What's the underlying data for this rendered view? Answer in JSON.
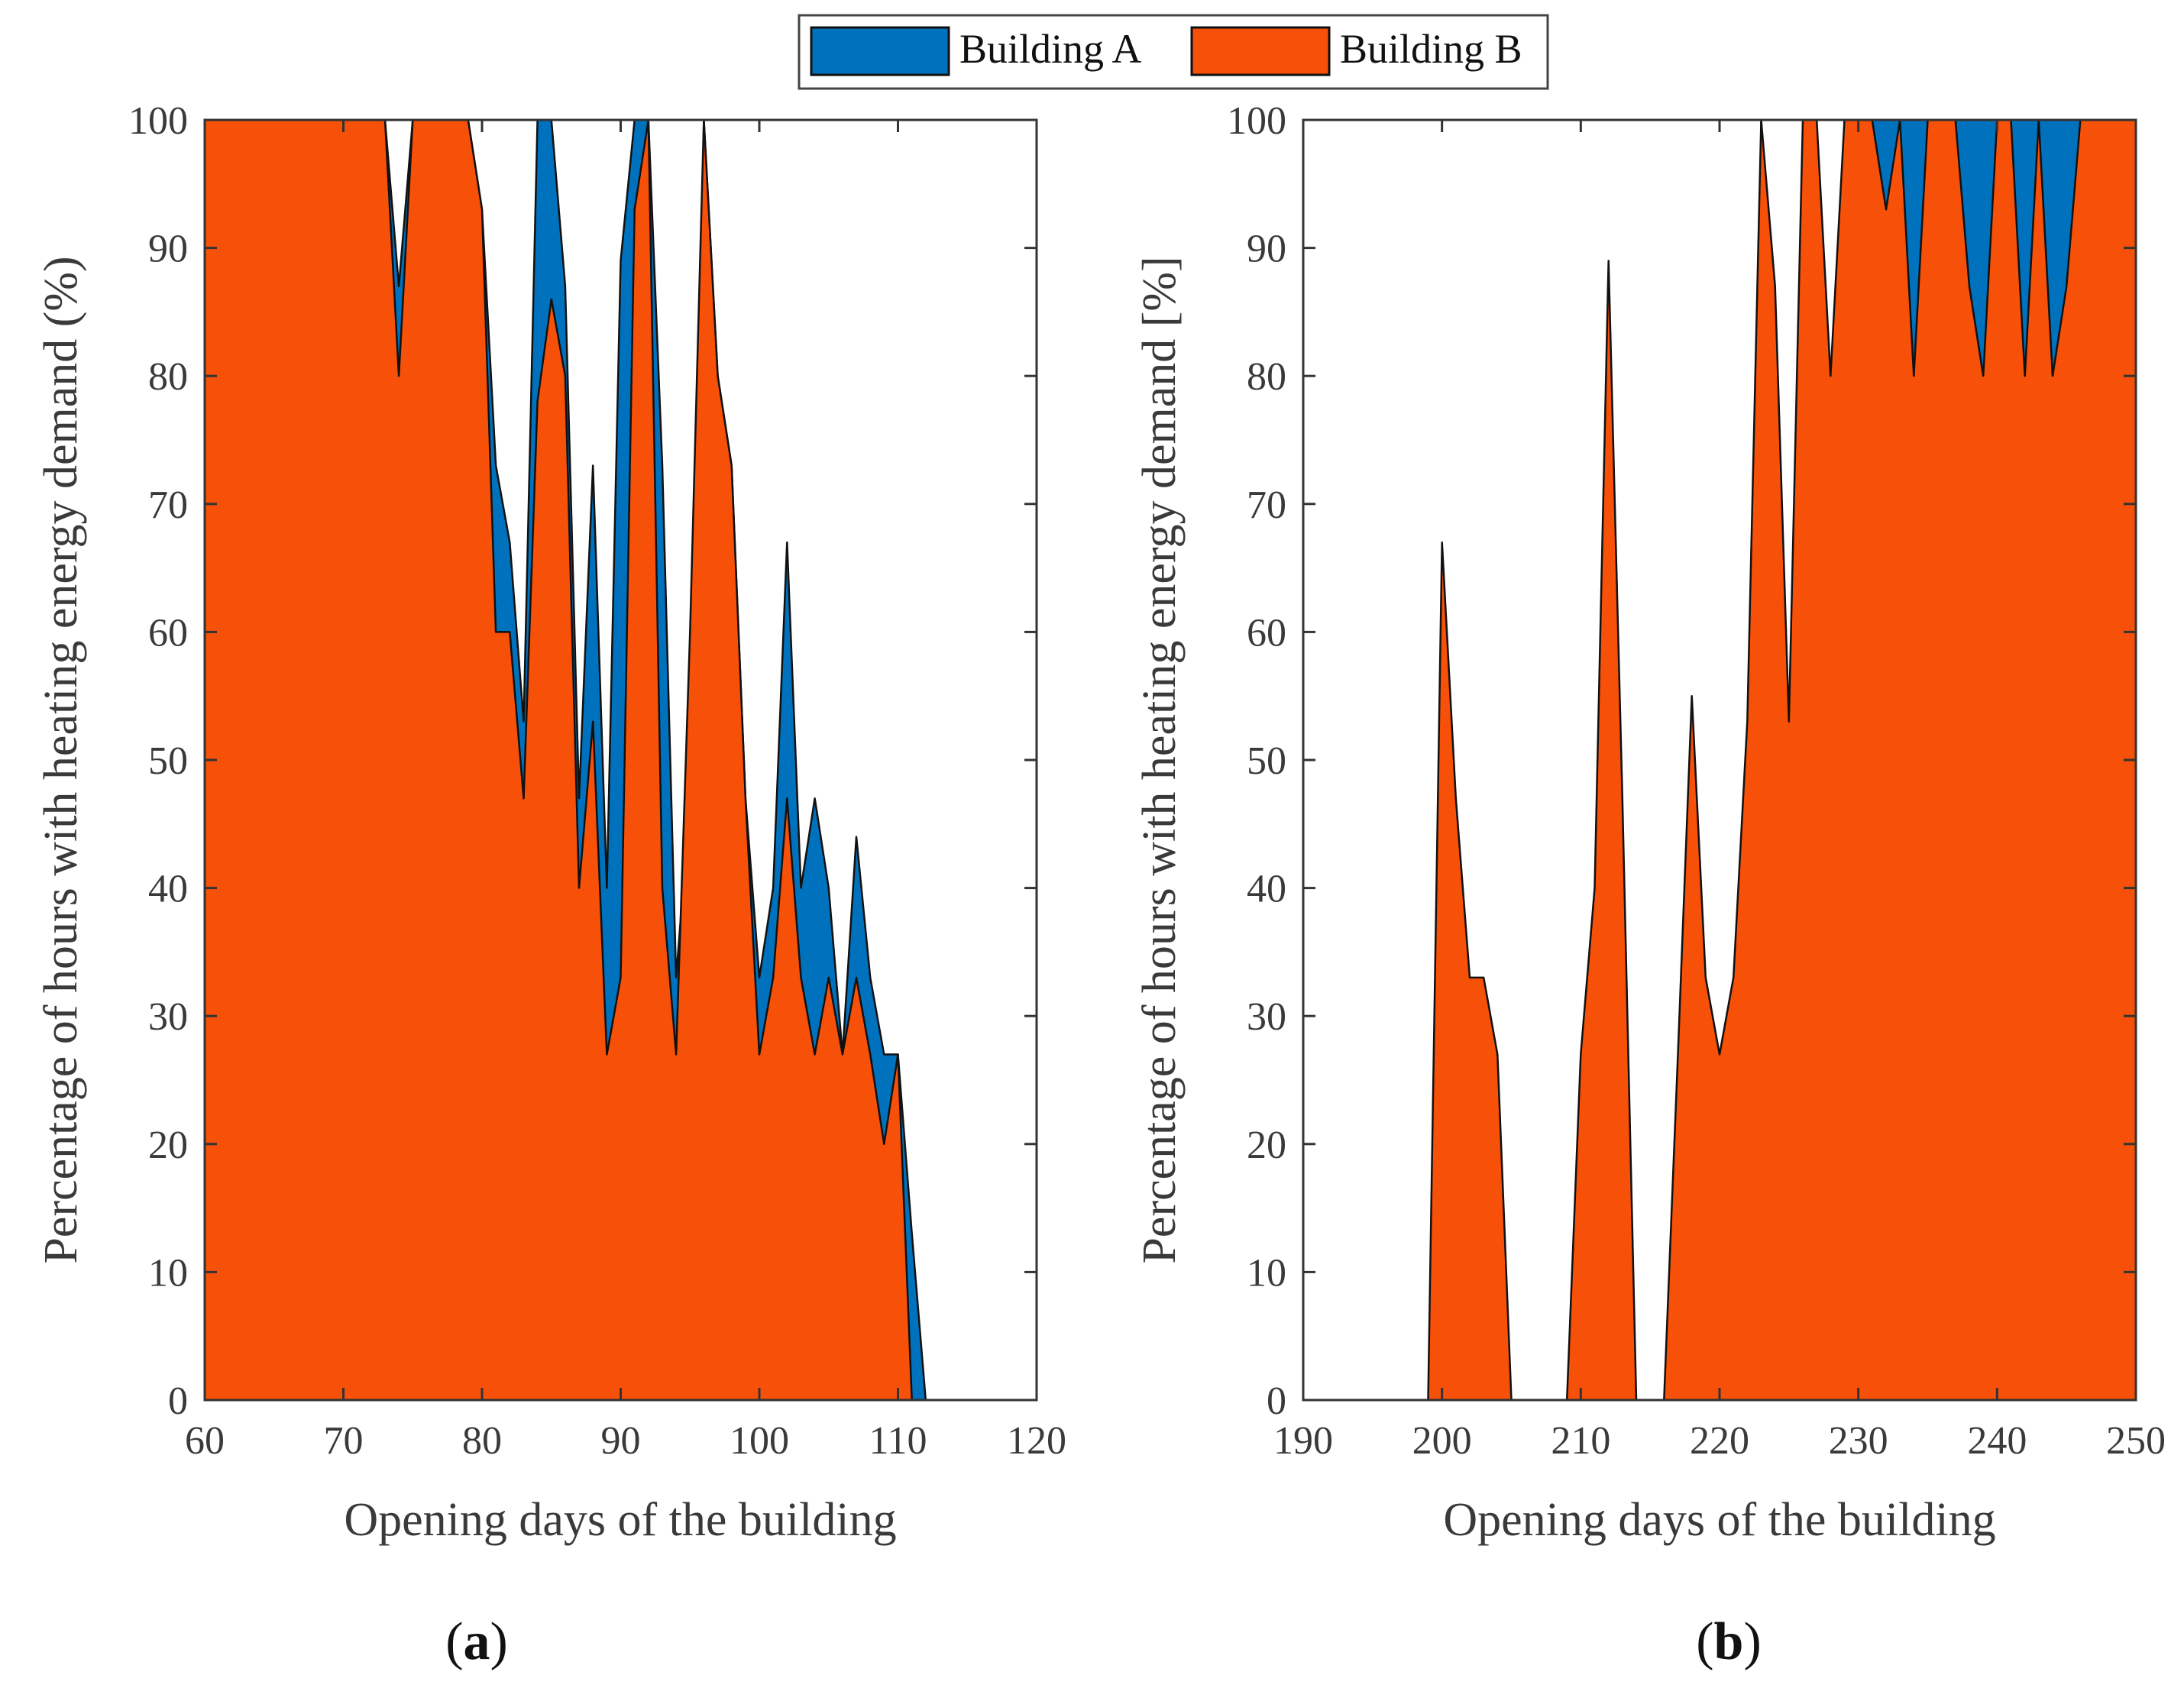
{
  "legend": {
    "entries": [
      {
        "label": "Building A",
        "color": "#0072BD"
      },
      {
        "label": "Building B",
        "color": "#F75008"
      }
    ]
  },
  "chart_data": [
    {
      "type": "area",
      "panel_label": "a",
      "xlabel": "Opening days of the building",
      "ylabel": "Percentage of hours with heating energy demand (%)",
      "xlim": [
        60,
        120
      ],
      "ylim": [
        0,
        100
      ],
      "xticks": [
        60,
        70,
        80,
        90,
        100,
        110,
        120
      ],
      "yticks": [
        0,
        10,
        20,
        30,
        40,
        50,
        60,
        70,
        80,
        90,
        100
      ],
      "series": [
        {
          "name": "Building A",
          "x": [
            60,
            73,
            74,
            75,
            76,
            77,
            78,
            79,
            80,
            81,
            82,
            83,
            84,
            85,
            86,
            87,
            88,
            89,
            90,
            91,
            92,
            93,
            94,
            95,
            96,
            97,
            98,
            99,
            100,
            101,
            102,
            103,
            104,
            105,
            106,
            107,
            108,
            109,
            110,
            111,
            112
          ],
          "values": [
            100,
            100,
            87,
            100,
            100,
            100,
            100,
            100,
            93,
            73,
            67,
            53,
            100,
            100,
            87,
            47,
            73,
            40,
            89,
            100,
            100,
            73,
            33,
            47,
            100,
            80,
            73,
            47,
            33,
            40,
            67,
            40,
            47,
            40,
            27,
            44,
            33,
            27,
            27,
            13,
            0
          ]
        },
        {
          "name": "Building B",
          "x": [
            60,
            73,
            74,
            75,
            76,
            77,
            78,
            79,
            80,
            81,
            82,
            83,
            84,
            85,
            86,
            87,
            88,
            89,
            90,
            91,
            92,
            93,
            94,
            95,
            96,
            97,
            98,
            99,
            100,
            101,
            102,
            103,
            104,
            105,
            106,
            107,
            108,
            109,
            110,
            111,
            112
          ],
          "values": [
            100,
            100,
            80,
            100,
            100,
            100,
            100,
            100,
            93,
            60,
            60,
            47,
            78,
            86,
            80,
            40,
            53,
            27,
            33,
            93,
            100,
            40,
            27,
            60,
            100,
            80,
            73,
            47,
            27,
            33,
            47,
            33,
            27,
            33,
            27,
            33,
            27,
            20,
            27,
            0,
            0
          ]
        }
      ]
    },
    {
      "type": "area",
      "panel_label": "b",
      "xlabel": "Opening days of the building",
      "ylabel": "Percentage of hours with heating energy demand [%]",
      "xlim": [
        190,
        250
      ],
      "ylim": [
        0,
        100
      ],
      "xticks": [
        190,
        200,
        210,
        220,
        230,
        240,
        250
      ],
      "yticks": [
        0,
        10,
        20,
        30,
        40,
        50,
        60,
        70,
        80,
        90,
        100
      ],
      "series": [
        {
          "name": "Building A",
          "x": [
            190,
            222,
            223,
            224,
            225,
            226,
            227,
            228,
            229,
            230,
            231,
            232,
            233,
            234,
            235,
            236,
            237,
            238,
            239,
            240,
            241,
            242,
            243,
            244,
            245,
            246,
            247,
            248,
            249,
            250
          ],
          "values": [
            0,
            0,
            100,
            80,
            27,
            40,
            67,
            40,
            100,
            100,
            100,
            100,
            100,
            100,
            100,
            100,
            100,
            100,
            100,
            100,
            100,
            100,
            100,
            100,
            100,
            100,
            100,
            100,
            100,
            100
          ]
        },
        {
          "name": "Building B",
          "x": [
            190,
            199,
            200,
            201,
            202,
            203,
            204,
            205,
            206,
            209,
            210,
            211,
            212,
            213,
            214,
            215,
            216,
            217,
            218,
            219,
            220,
            221,
            222,
            223,
            224,
            225,
            226,
            227,
            228,
            229,
            230,
            231,
            232,
            233,
            234,
            235,
            236,
            237,
            238,
            239,
            240,
            241,
            242,
            243,
            244,
            245,
            246,
            247,
            248,
            249,
            250
          ],
          "values": [
            0,
            0,
            67,
            47,
            33,
            33,
            27,
            0,
            0,
            0,
            27,
            40,
            89,
            47,
            0,
            0,
            0,
            27,
            55,
            33,
            27,
            33,
            53,
            100,
            87,
            53,
            100,
            100,
            80,
            100,
            100,
            100,
            93,
            100,
            80,
            100,
            100,
            100,
            87,
            80,
            100,
            100,
            80,
            100,
            80,
            87,
            100,
            100,
            100,
            100,
            100
          ]
        }
      ]
    }
  ]
}
